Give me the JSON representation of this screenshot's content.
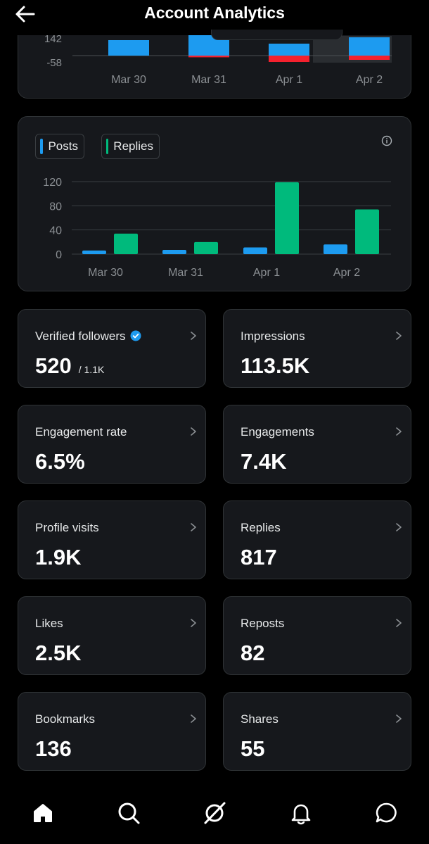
{
  "header": {
    "title": "Account Analytics",
    "back_icon": "arrow-left-icon"
  },
  "top_chart": {
    "chart_data": {
      "type": "bar",
      "categories": [
        "Mar 30",
        "Mar 31",
        "Apr 1",
        "Apr 2"
      ],
      "ytick_labels": [
        "142",
        "-58"
      ],
      "series": [
        {
          "values": [
            110,
            160,
            85,
            130
          ],
          "color": "#1d9bf0"
        },
        {
          "values": [
            0,
            -12,
            -45,
            -30
          ],
          "color": "#f4212e"
        }
      ]
    }
  },
  "bar_chart": {
    "legend": [
      {
        "label": "Posts",
        "color": "#1d9bf0"
      },
      {
        "label": "Replies",
        "color": "#00ba7c"
      }
    ],
    "chart_data": {
      "type": "bar",
      "categories": [
        "Mar 30",
        "Mar 31",
        "Apr 1",
        "Apr 2"
      ],
      "ylim": [
        0,
        120
      ],
      "yticks": [
        120,
        80,
        40,
        0
      ],
      "series": [
        {
          "name": "Posts",
          "values": [
            6,
            7,
            11,
            16
          ],
          "color": "#1d9bf0"
        },
        {
          "name": "Replies",
          "values": [
            34,
            20,
            119,
            74
          ],
          "color": "#00ba7c"
        }
      ]
    }
  },
  "stats": [
    {
      "label": "Verified followers",
      "value": "520",
      "sub": "/ 1.1K",
      "verified": true
    },
    {
      "label": "Impressions",
      "value": "113.5K"
    },
    {
      "label": "Engagement rate",
      "value": "6.5%"
    },
    {
      "label": "Engagements",
      "value": "7.4K"
    },
    {
      "label": "Profile visits",
      "value": "1.9K"
    },
    {
      "label": "Replies",
      "value": "817"
    },
    {
      "label": "Likes",
      "value": "2.5K"
    },
    {
      "label": "Reposts",
      "value": "82"
    },
    {
      "label": "Bookmarks",
      "value": "136"
    },
    {
      "label": "Shares",
      "value": "55"
    }
  ],
  "nav": [
    "home-icon",
    "search-icon",
    "grok-icon",
    "notifications-icon",
    "messages-icon"
  ]
}
